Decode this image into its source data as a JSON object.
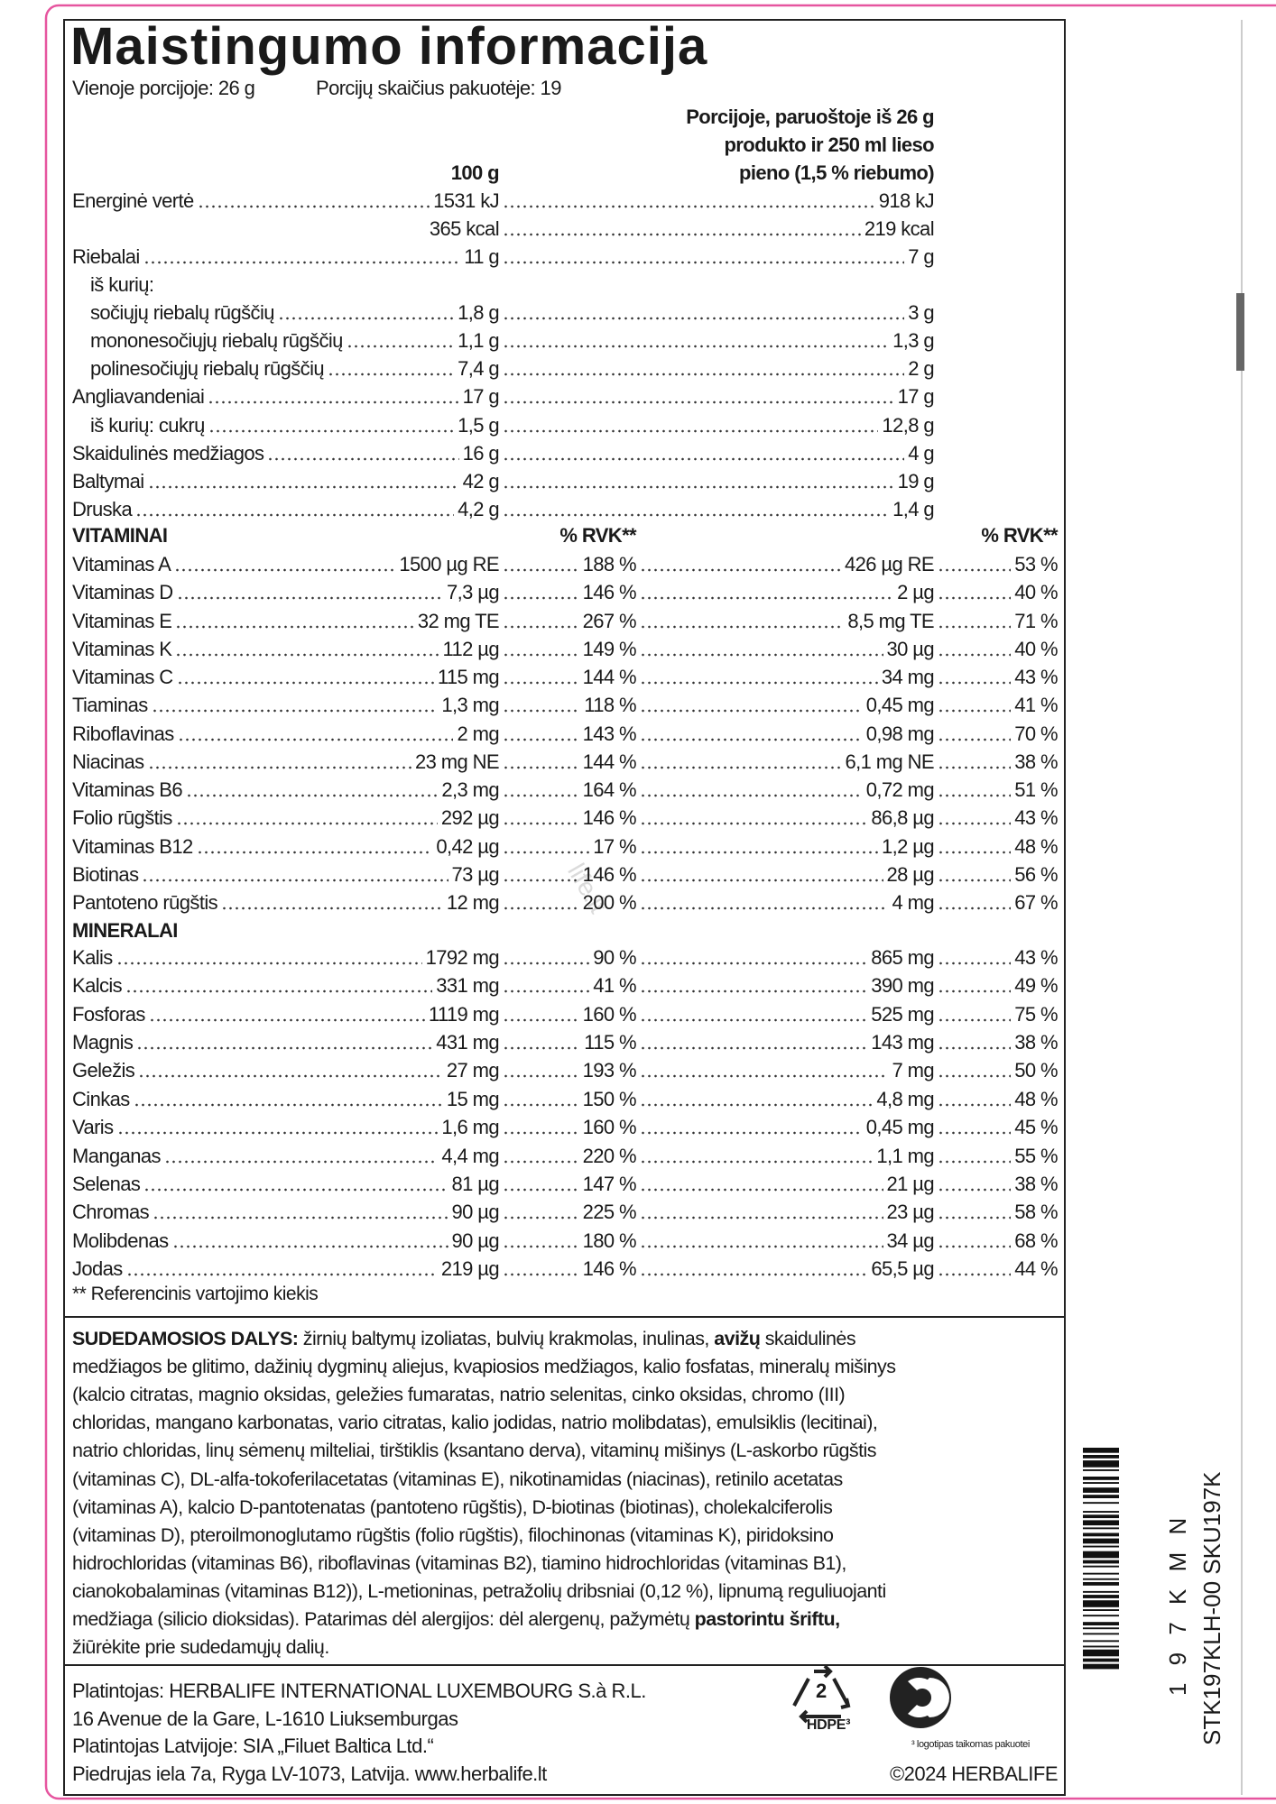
{
  "header": {
    "title": "Maistingumo informacija",
    "serving_size": "Vienoje porcijoje: 26 g",
    "servings_per_pack": "Porcijų skaičius pakuotėje: 19"
  },
  "columns": {
    "per100": "100 g",
    "per_serving": [
      "Porcijoje, paruoštoje iš 26 g",
      "produkto ir 250 ml lieso",
      "pieno (1,5 % riebumo)"
    ]
  },
  "nutrition": {
    "rows": [
      [
        "Energinė vertė",
        "1531 kJ",
        "918 kJ"
      ],
      [
        null,
        "365 kcal",
        "219 kcal"
      ],
      [
        "Riebalai",
        "11 g",
        "7 g"
      ],
      [
        "iš kurių:"
      ],
      [
        "sočiųjų riebalų rūgščių",
        "1,8 g",
        "3 g"
      ],
      [
        "mononesočiųjų riebalų rūgščių",
        "1,1 g",
        "1,3 g"
      ],
      [
        "polinesočiųjų riebalų rūgščių",
        "7,4 g",
        "2 g"
      ],
      [
        "Angliavandeniai",
        "17 g",
        "17 g"
      ],
      [
        "iš kurių: cukrų",
        "1,5 g",
        "12,8 g"
      ],
      [
        "Skaidulinės medžiagos",
        "16 g",
        "4 g"
      ],
      [
        "Baltymai",
        "42 g",
        "19 g"
      ],
      [
        "Druska",
        "4,2 g",
        "1,4 g"
      ]
    ]
  },
  "vitamins": {
    "title": "VITAMINAI",
    "rvk_header": "% RVK**",
    "rows": [
      [
        "Vitaminas A",
        "1500 µg RE",
        "188 %",
        "426 µg RE",
        "53 %"
      ],
      [
        "Vitaminas D",
        "7,3 µg",
        "146 %",
        "2 µg",
        "40 %"
      ],
      [
        "Vitaminas E",
        "32 mg TE",
        "267 %",
        "8,5 mg TE",
        "71 %"
      ],
      [
        "Vitaminas K",
        "112 µg",
        "149 %",
        "30 µg",
        "40 %"
      ],
      [
        "Vitaminas C",
        "115 mg",
        "144 %",
        "34 mg",
        "43 %"
      ],
      [
        "Tiaminas",
        "1,3 mg",
        "118 %",
        "0,45 mg",
        "41 %"
      ],
      [
        "Riboflavinas",
        "2 mg",
        "143 %",
        "0,98 mg",
        "70 %"
      ],
      [
        "Niacinas",
        "23 mg NE",
        "144 %",
        "6,1 mg NE",
        "38 %"
      ],
      [
        "Vitaminas B6",
        "2,3 mg",
        "164 %",
        "0,72 mg",
        "51 %"
      ],
      [
        "Folio rūgštis",
        "292 µg",
        "146 %",
        "86,8 µg",
        "43 %"
      ],
      [
        "Vitaminas B12",
        "0,42 µg",
        "17 %",
        "1,2 µg",
        "48 %"
      ],
      [
        "Biotinas",
        "73 µg",
        "146 %",
        "28 µg",
        "56 %"
      ],
      [
        "Pantoteno rūgštis",
        "12 mg",
        "200 %",
        "4 mg",
        "67 %"
      ]
    ]
  },
  "minerals": {
    "title": "MINERALAI",
    "rows": [
      [
        "Kalis",
        "1792 mg",
        "90 %",
        "865 mg",
        "43 %"
      ],
      [
        "Kalcis",
        "331 mg",
        "41 %",
        "390 mg",
        "49 %"
      ],
      [
        "Fosforas",
        "1119 mg",
        "160 %",
        "525 mg",
        "75 %"
      ],
      [
        "Magnis",
        "431 mg",
        "115 %",
        "143 mg",
        "38 %"
      ],
      [
        "Geležis",
        "27 mg",
        "193 %",
        "7 mg",
        "50 %"
      ],
      [
        "Cinkas",
        "15 mg",
        "150 %",
        "4,8 mg",
        "48 %"
      ],
      [
        "Varis",
        "1,6 mg",
        "160 %",
        "0,45 mg",
        "45 %"
      ],
      [
        "Manganas",
        "4,4 mg",
        "220 %",
        "1,1 mg",
        "55 %"
      ],
      [
        "Selenas",
        "81 µg",
        "147 %",
        "21 µg",
        "38 %"
      ],
      [
        "Chromas",
        "90 µg",
        "225 %",
        "23 µg",
        "58 %"
      ],
      [
        "Molibdenas",
        "90 µg",
        "180 %",
        "34 µg",
        "68 %"
      ],
      [
        "Jodas",
        "219 µg",
        "146 %",
        "65,5 µg",
        "44 %"
      ]
    ]
  },
  "footnote": "** Referencinis vartojimo kiekis",
  "watermark": "life.lt",
  "ingredients": {
    "lines": [
      [
        {
          "text": "SUDEDAMOSIOS DALYS:",
          "bold": true
        },
        " žirnių baltymų izoliatas, bulvių krakmolas, inulinas, ",
        {
          "text": "avižų",
          "bold": true
        },
        " skaidulinės"
      ],
      [
        "medžiagos be glitimo, dažinių dygminų aliejus, kvapiosios medžiagos, kalio fosfatas, mineralų mišinys"
      ],
      [
        "(kalcio citratas, magnio oksidas, geležies fumaratas, natrio selenitas, cinko oksidas, chromo (III)"
      ],
      [
        "chloridas, mangano karbonatas, vario citratas, kalio jodidas, natrio molibdatas), emulsiklis (lecitinai),"
      ],
      [
        "natrio chloridas, linų sėmenų milteliai, tirštiklis (ksantano derva), vitaminų mišinys (L-askorbo rūgštis"
      ],
      [
        "(vitaminas C), DL-alfa-tokoferilacetatas (vitaminas E), nikotinamidas (niacinas), retinilo acetatas"
      ],
      [
        "(vitaminas A), kalcio D-pantotenatas (pantoteno rūgštis), D-biotinas (biotinas), cholekalciferolis"
      ],
      [
        "(vitaminas D), pteroilmonoglutamo rūgštis (folio rūgštis), filochinonas (vitaminas K), piridoksino"
      ],
      [
        "hidrochloridas (vitaminas B6), riboflavinas (vitaminas B2), tiamino hidrochloridas (vitaminas B1),"
      ],
      [
        "cianokobalaminas (vitaminas B12)), L-metioninas, petražolių dribsniai (0,12 %), lipnumą reguliuojanti"
      ],
      [
        "medžiaga (silicio dioksidas). Patarimas dėl alergijos: dėl alergenų, pažymėtų ",
        {
          "text": "pastorintu šriftu,",
          "bold": true
        }
      ],
      [
        "žiūrėkite prie sudedamųjų dalių."
      ]
    ]
  },
  "distributor": {
    "lines": [
      "Platintojas: HERBALIFE INTERNATIONAL LUXEMBOURG S.à R.L.",
      "16 Avenue de la Gare, L-1610 Liuksemburgas",
      "Platintojas Latvijoje: SIA „Filuet Baltica Ltd.“",
      "Piedrujas iela 7a, Ryga LV-1073, Latvija. www.herbalife.lt"
    ]
  },
  "recycling": {
    "number": "2",
    "code": "HDPE³",
    "note": "³ logotipas taikomas pakuotei"
  },
  "copyright": "©2024 HERBALIFE",
  "barcode": {
    "digits": "1 9 7 K M N",
    "code": "STK197KLH-00 SKU197K"
  }
}
